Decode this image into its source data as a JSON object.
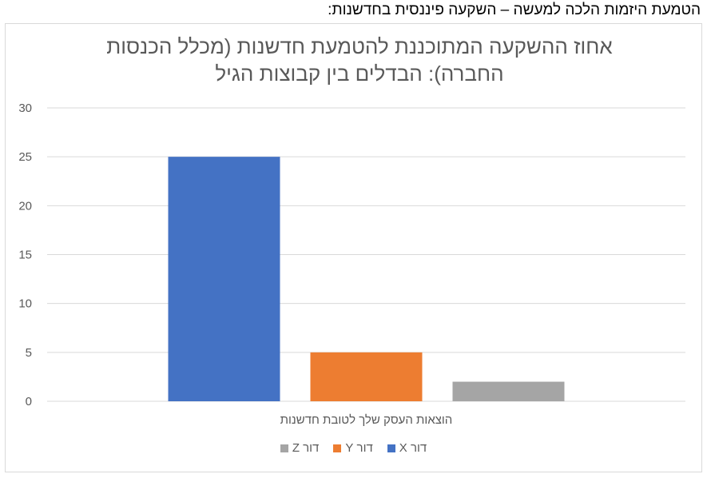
{
  "heading": "הטמעת היזמות הלכה למעשה – השקעה פיננסית בחדשנות:",
  "chart_data": {
    "type": "bar",
    "title": "אחוז ההשקעה המתוכננת להטמעת חדשנות (מכלל הכנסות החברה): הבדלים בין קבוצות הגיל",
    "categories": [
      "הוצאות העסק שלך לטובת חדשנות"
    ],
    "series": [
      {
        "name": "דור X",
        "values": [
          25
        ],
        "color": "#4472C4"
      },
      {
        "name": "דור Y",
        "values": [
          5
        ],
        "color": "#ED7D31"
      },
      {
        "name": "דור Z",
        "values": [
          2
        ],
        "color": "#A5A5A5"
      }
    ],
    "ylim": [
      0,
      30
    ],
    "yticks": [
      0,
      5,
      10,
      15,
      20,
      25,
      30
    ],
    "grid": true,
    "legend_position": "bottom"
  }
}
